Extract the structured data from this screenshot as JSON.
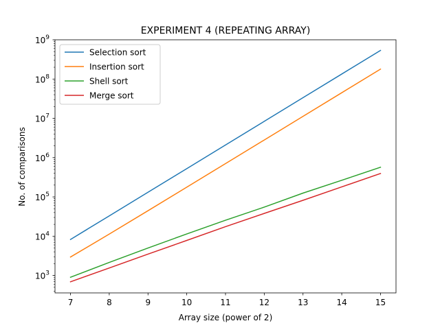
{
  "chart_data": {
    "type": "line",
    "title": "EXPERIMENT 4 (REPEATING ARRAY)",
    "xlabel": "Array size (power of 2)",
    "ylabel": "No. of comparisons",
    "yscale": "log",
    "xlim": [
      6.6,
      15.4
    ],
    "ylim": [
      360,
      1000000000
    ],
    "x": [
      7,
      8,
      9,
      10,
      11,
      12,
      13,
      14,
      15
    ],
    "xticks": [
      "7",
      "8",
      "9",
      "10",
      "11",
      "12",
      "13",
      "14",
      "15"
    ],
    "yticks": [
      {
        "exp": 3,
        "label_base": "10",
        "label_exp": "3"
      },
      {
        "exp": 4,
        "label_base": "10",
        "label_exp": "4"
      },
      {
        "exp": 5,
        "label_base": "10",
        "label_exp": "5"
      },
      {
        "exp": 6,
        "label_base": "10",
        "label_exp": "6"
      },
      {
        "exp": 7,
        "label_base": "10",
        "label_exp": "7"
      },
      {
        "exp": 8,
        "label_base": "10",
        "label_exp": "8"
      },
      {
        "exp": 9,
        "label_base": "10",
        "label_exp": "9"
      }
    ],
    "legend_position": "top-left",
    "grid": false,
    "series": [
      {
        "name": "Selection sort",
        "color": "#1f77b4",
        "values": [
          8256,
          32896,
          131328,
          524800,
          2098176,
          8390656,
          33558528,
          134225920,
          536887296
        ]
      },
      {
        "name": "Insertion sort",
        "color": "#ff7f0e",
        "values": [
          2950,
          11300,
          44500,
          177000,
          705000,
          2810000,
          11230000,
          44900000,
          179000000
        ]
      },
      {
        "name": "Shell sort",
        "color": "#2ca02c",
        "values": [
          900,
          2150,
          5000,
          11400,
          25500,
          55000,
          125000,
          265000,
          570000
        ]
      },
      {
        "name": "Merge sort",
        "color": "#d62728",
        "values": [
          690,
          1550,
          3500,
          7800,
          17500,
          38000,
          82000,
          180000,
          395000
        ]
      }
    ]
  }
}
